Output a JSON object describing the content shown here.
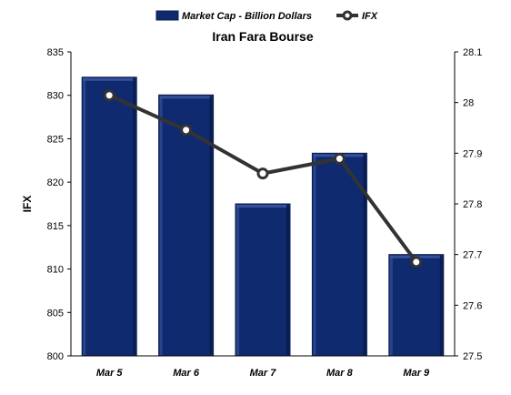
{
  "chart_data": {
    "type": "bar",
    "title": "Iran Fara Bourse",
    "ylabel": "IFX",
    "categories": [
      "Mar 5",
      "Mar 6",
      "Mar 7",
      "Mar 8",
      "Mar 9"
    ],
    "series": [
      {
        "name": "Market Cap - Billion  Dollars",
        "type": "bar",
        "axis": "right",
        "values": [
          28.05,
          28.015,
          27.8,
          27.9,
          27.7
        ]
      },
      {
        "name": "IFX",
        "type": "line",
        "axis": "left",
        "values": [
          830.0,
          826.0,
          821.0,
          822.7,
          810.8
        ]
      }
    ],
    "ylim": [
      800,
      835
    ],
    "y_ticks": [
      "800",
      "805",
      "810",
      "815",
      "820",
      "825",
      "830",
      "835"
    ],
    "y2lim": [
      27.5,
      28.1
    ],
    "y2_ticks": [
      "27.5",
      "27.6",
      "27.7",
      "27.8",
      "27.9",
      "28",
      "28.1"
    ],
    "legend_position": "top-center",
    "grid": false,
    "colors": {
      "bar_fill": "#0f2a6e",
      "bar_dark": "#0a1c4e",
      "bar_light": "#3b55a0",
      "line": "#333333",
      "marker_fill": "#ffffff"
    }
  }
}
